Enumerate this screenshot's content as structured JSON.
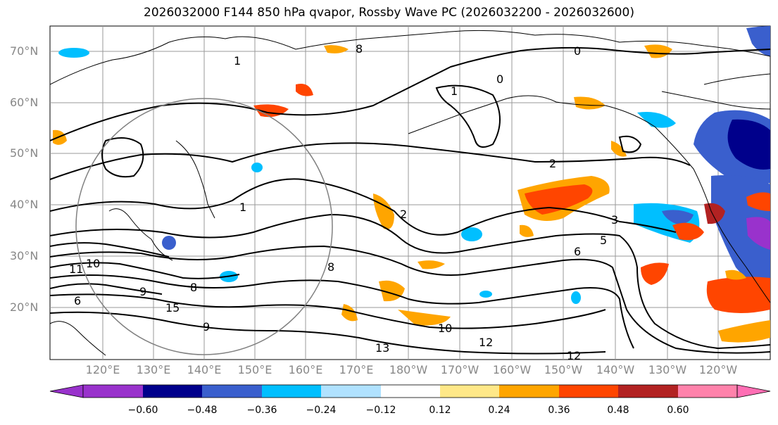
{
  "title": "2026032000 F144 850 hPa qvapor, Rossby Wave PC (2026032200 - 2026032600)",
  "lat_labels": [
    "70°N",
    "60°N",
    "50°N",
    "40°N",
    "30°N",
    "20°N"
  ],
  "lon_labels": [
    "120°E",
    "130°E",
    "140°E",
    "150°E",
    "160°E",
    "170°E",
    "180°W",
    "170°W",
    "160°W",
    "150°W",
    "140°W",
    "130°W",
    "120°W"
  ],
  "contour_labels": [
    "0",
    "0",
    "1",
    "1",
    "1",
    "2",
    "2",
    "3",
    "5",
    "6",
    "8",
    "8",
    "8",
    "9",
    "9",
    "10",
    "10",
    "11",
    "12",
    "12",
    "13",
    "15",
    "6"
  ],
  "colorbar": {
    "colors": [
      "#9932cc",
      "#00008b",
      "#3a5fcd",
      "#00bfff",
      "#b0e2ff",
      "#ffffff",
      "#ffe888",
      "#ffa500",
      "#ff4500",
      "#b22222",
      "#ff82ab",
      "#ff6eb4"
    ],
    "ticks": [
      "−0.60",
      "−0.48",
      "−0.36",
      "−0.24",
      "−0.12",
      "0.12",
      "0.24",
      "0.36",
      "0.48",
      "0.60"
    ]
  }
}
